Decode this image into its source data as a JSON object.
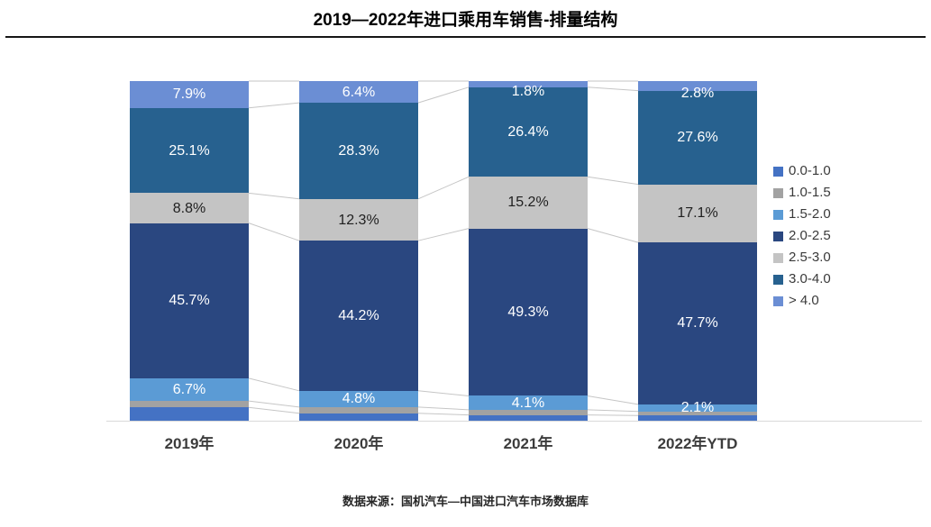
{
  "title": "2019—2022年进口乘用车销售-排量结构",
  "footer": "数据来源：国机汽车—中国进口汽车市场数据库",
  "colors": {
    "axis_line": "#D9D9D9",
    "connector_line": "#C6C6C6",
    "title_rule": "#161616"
  },
  "chart_data": {
    "type": "bar",
    "subtype": "stacked-100-percent",
    "title": "2019—2022年进口乘用车销售-排量结构",
    "xlabel": "",
    "ylabel": "",
    "ylim": [
      0,
      100
    ],
    "grid": false,
    "legend_position": "right",
    "value_suffix": "%",
    "categories": [
      "2019年",
      "2020年",
      "2021年",
      "2022年YTD"
    ],
    "series": [
      {
        "name": "0.0-1.0",
        "color": "#4472C4",
        "label_color": "#FFFFFF",
        "show_labels": false,
        "values": [
          3.9,
          2.2,
          1.7,
          1.5
        ]
      },
      {
        "name": "1.0-1.5",
        "color": "#A2A2A2",
        "label_color": "#FFFFFF",
        "show_labels": false,
        "values": [
          1.9,
          1.8,
          1.5,
          1.2
        ]
      },
      {
        "name": "1.5-2.0",
        "color": "#5B9BD5",
        "label_color": "#FFFFFF",
        "show_labels": true,
        "values": [
          6.7,
          4.8,
          4.1,
          2.1
        ]
      },
      {
        "name": "2.0-2.5",
        "color": "#2A4780",
        "label_color": "#FFFFFF",
        "show_labels": true,
        "values": [
          45.7,
          44.2,
          49.3,
          47.7
        ]
      },
      {
        "name": "2.5-3.0",
        "color": "#C4C4C4",
        "label_color": "#1F1F1F",
        "show_labels": true,
        "values": [
          8.8,
          12.3,
          15.2,
          17.1
        ]
      },
      {
        "name": "3.0-4.0",
        "color": "#27618F",
        "label_color": "#FFFFFF",
        "show_labels": true,
        "values": [
          25.1,
          28.3,
          26.4,
          27.6
        ]
      },
      {
        "name": "> 4.0",
        "color": "#6B8ED4",
        "label_color": "#FFFFFF",
        "show_labels": true,
        "values": [
          7.9,
          6.4,
          1.8,
          2.8
        ]
      }
    ]
  }
}
